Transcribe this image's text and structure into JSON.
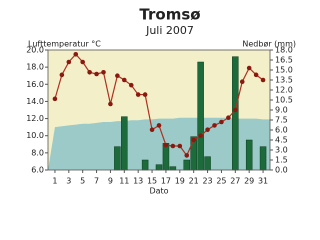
{
  "chart_data": {
    "type": "bar-line",
    "title": "Tromsø",
    "subtitle": "Juli 2007",
    "y_label": "Lufttemperatur °C",
    "y2_label": "Nedbør (mm)",
    "x_label": "Dato",
    "x": [
      1,
      2,
      3,
      4,
      5,
      6,
      7,
      8,
      9,
      10,
      11,
      12,
      13,
      14,
      15,
      16,
      17,
      18,
      19,
      20,
      21,
      22,
      23,
      24,
      25,
      26,
      27,
      28,
      29,
      30,
      31
    ],
    "xlim": [
      0,
      32
    ],
    "xticks": [
      1,
      3,
      5,
      7,
      9,
      11,
      13,
      15,
      17,
      19,
      21,
      23,
      25,
      27,
      29,
      31
    ],
    "temperature": {
      "color": "#b03020",
      "values": [
        14.3,
        17.1,
        18.6,
        19.5,
        18.6,
        17.4,
        17.2,
        17.4,
        13.7,
        17.0,
        16.5,
        15.9,
        14.8,
        14.8,
        10.7,
        11.2,
        8.9,
        8.8,
        8.8,
        7.7,
        9.5,
        10.0,
        10.7,
        11.2,
        11.6,
        12.1,
        13.0,
        16.3,
        17.9,
        17.1,
        16.5
      ]
    },
    "normal": {
      "color": "#9ccac8",
      "values": [
        11.0,
        11.1,
        11.2,
        11.3,
        11.4,
        11.4,
        11.5,
        11.6,
        11.6,
        11.7,
        11.7,
        11.8,
        11.8,
        11.9,
        11.9,
        12.0,
        12.0,
        12.0,
        12.1,
        12.1,
        12.1,
        12.1,
        12.1,
        12.1,
        12.1,
        12.1,
        12.0,
        12.0,
        12.0,
        12.0,
        11.9
      ]
    },
    "precipitation": {
      "color": "#1d6b3b",
      "axis": "y2",
      "values": [
        0,
        0,
        0,
        0,
        0,
        0,
        0,
        0,
        0,
        3.5,
        8.0,
        0,
        0,
        1.5,
        0,
        0.8,
        4.0,
        0.5,
        0,
        1.5,
        5.0,
        16.2,
        2.0,
        0,
        0,
        0,
        17.0,
        0,
        4.5,
        0,
        3.5
      ]
    },
    "ylim": [
      6,
      20
    ],
    "yticks": [
      {
        "value": 6,
        "label": "6.0"
      },
      {
        "value": 8,
        "label": "8.0"
      },
      {
        "value": 10,
        "label": "10.0"
      },
      {
        "value": 12,
        "label": "12.0"
      },
      {
        "value": 14,
        "label": "14.0"
      },
      {
        "value": 16,
        "label": "16.0"
      },
      {
        "value": 18,
        "label": "18.0"
      },
      {
        "value": 20,
        "label": "20.0"
      }
    ],
    "y2lim": [
      0,
      18
    ],
    "y2ticks": [
      {
        "value": 0,
        "label": "0.0"
      },
      {
        "value": 1.5,
        "label": "1.5"
      },
      {
        "value": 3,
        "label": "3.0"
      },
      {
        "value": 4.5,
        "label": "4.5"
      },
      {
        "value": 6,
        "label": "6.0"
      },
      {
        "value": 7.5,
        "label": "7.5"
      },
      {
        "value": 9,
        "label": "9.0"
      },
      {
        "value": 10.5,
        "label": "10.5"
      },
      {
        "value": 12,
        "label": "12.0"
      },
      {
        "value": 13.5,
        "label": "13.5"
      },
      {
        "value": 15,
        "label": "15.0"
      },
      {
        "value": 16.5,
        "label": "16.5"
      },
      {
        "value": 18,
        "label": "18.0"
      }
    ],
    "background": "#f3f0c9"
  }
}
